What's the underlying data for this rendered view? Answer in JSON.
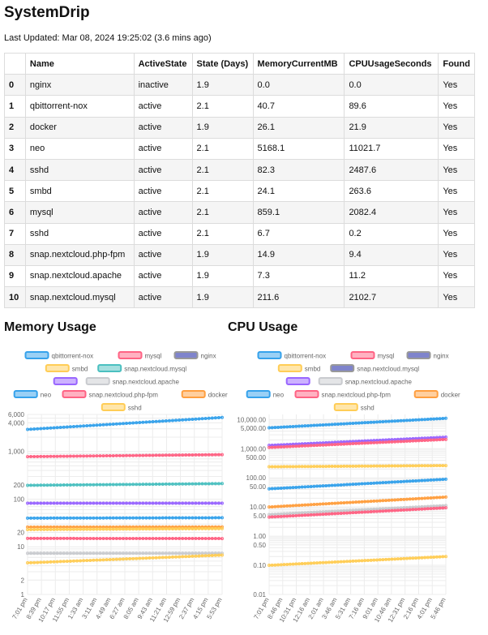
{
  "title": "SystemDrip",
  "last_updated": "Last Updated: Mar 08, 2024 19:25:02 (3.6 mins ago)",
  "table": {
    "columns": [
      "",
      "Name",
      "ActiveState",
      "State (Days)",
      "MemoryCurrentMB",
      "CPUUsageSeconds",
      "Found"
    ],
    "rows": [
      [
        "0",
        "nginx",
        "inactive",
        "1.9",
        "0.0",
        "0.0",
        "Yes"
      ],
      [
        "1",
        "qbittorrent-nox",
        "active",
        "2.1",
        "40.7",
        "89.6",
        "Yes"
      ],
      [
        "2",
        "docker",
        "active",
        "1.9",
        "26.1",
        "21.9",
        "Yes"
      ],
      [
        "3",
        "neo",
        "active",
        "2.1",
        "5168.1",
        "11021.7",
        "Yes"
      ],
      [
        "4",
        "sshd",
        "active",
        "2.1",
        "82.3",
        "2487.6",
        "Yes"
      ],
      [
        "5",
        "smbd",
        "active",
        "2.1",
        "24.1",
        "263.6",
        "Yes"
      ],
      [
        "6",
        "mysql",
        "active",
        "2.1",
        "859.1",
        "2082.4",
        "Yes"
      ],
      [
        "7",
        "sshd",
        "active",
        "2.1",
        "6.7",
        "0.2",
        "Yes"
      ],
      [
        "8",
        "snap.nextcloud.php-fpm",
        "active",
        "1.9",
        "14.9",
        "9.4",
        "Yes"
      ],
      [
        "9",
        "snap.nextcloud.apache",
        "active",
        "1.9",
        "7.3",
        "11.2",
        "Yes"
      ],
      [
        "10",
        "snap.nextcloud.mysql",
        "active",
        "1.9",
        "211.6",
        "2102.7",
        "Yes"
      ]
    ]
  },
  "memory_heading": "Memory Usage",
  "cpu_heading": "CPU Usage",
  "chart_data": [
    {
      "type": "line",
      "title": "Memory Usage",
      "scale": "log",
      "grid": true,
      "legend": "top",
      "y_ticks": [
        1,
        2,
        10,
        20,
        100,
        200,
        1000,
        4000,
        6000
      ],
      "y_tick_labels": [
        "1",
        "2",
        "10",
        "20",
        "100",
        "200",
        "1,000",
        "4,000",
        "6,000"
      ],
      "ylim": [
        1,
        6000
      ],
      "x_labels": [
        "7:01 pm",
        "8:39 pm",
        "10:17 pm",
        "11:55 pm",
        "1:33 am",
        "3:11 am",
        "4:49 am",
        "6:27 am",
        "8:05 am",
        "9:43 am",
        "11:21 am",
        "12:59 pm",
        "2:37 pm",
        "4:15 pm",
        "5:53 pm"
      ],
      "legend_rows": [
        [
          "qbittorrent-nox",
          "mysql",
          "nginx"
        ],
        [
          "smbd",
          "snap.nextcloud.mysql"
        ],
        [
          "",
          "snap.nextcloud.apache"
        ],
        [
          "neo",
          "snap.nextcloud.php-fpm",
          "docker"
        ],
        [
          "sshd"
        ]
      ],
      "series": [
        {
          "name": "neo",
          "color": "#36a2eb",
          "start": 2900,
          "end": 5168
        },
        {
          "name": "mysql",
          "color": "#ff6384",
          "start": 780,
          "end": 859
        },
        {
          "name": "snap.nextcloud.mysql",
          "color": "#4bc0c0",
          "start": 195,
          "end": 212
        },
        {
          "name": "",
          "color": "#9966ff",
          "start": 82,
          "end": 82
        },
        {
          "name": "qbittorrent-nox",
          "color": "#36a2eb",
          "start": 40,
          "end": 40.7
        },
        {
          "name": "docker",
          "color": "#ff9f40",
          "start": 26,
          "end": 26.1
        },
        {
          "name": "smbd",
          "color": "#ffcd56",
          "start": 23,
          "end": 24.1
        },
        {
          "name": "snap.nextcloud.php-fpm",
          "color": "#ff6384",
          "start": 15,
          "end": 14.9
        },
        {
          "name": "snap.nextcloud.apache",
          "color": "#c9cbcf",
          "start": 7.3,
          "end": 7.3
        },
        {
          "name": "sshd",
          "color": "#ffcd56",
          "start": 4.6,
          "end": 6.7
        }
      ]
    },
    {
      "type": "line",
      "title": "CPU Usage",
      "scale": "log",
      "grid": true,
      "legend": "top",
      "y_ticks": [
        0.01,
        0.1,
        0.5,
        1,
        5,
        10,
        50,
        100,
        500,
        1000,
        5000,
        10000
      ],
      "y_tick_labels": [
        "0.01",
        "0.10",
        "0.50",
        "1.00",
        "5.00",
        "10.00",
        "50.00",
        "100.00",
        "500.00",
        "1,000.00",
        "5,000.00",
        "10,000.00"
      ],
      "ylim": [
        0.01,
        15000
      ],
      "x_labels": [
        "7:01 pm",
        "8:46 pm",
        "10:31 pm",
        "12:16 am",
        "2:01 am",
        "3:46 am",
        "5:31 am",
        "7:16 am",
        "9:01 am",
        "10:46 am",
        "12:31 pm",
        "2:16 pm",
        "4:01 pm",
        "5:46 pm"
      ],
      "legend_rows": [
        [
          "qbittorrent-nox",
          "mysql",
          "nginx"
        ],
        [
          "smbd",
          "snap.nextcloud.mysql"
        ],
        [
          "",
          "snap.nextcloud.apache"
        ],
        [
          "neo",
          "snap.nextcloud.php-fpm",
          "docker"
        ],
        [
          "sshd"
        ]
      ],
      "series": [
        {
          "name": "neo",
          "color": "#36a2eb",
          "start": 5200,
          "end": 11022
        },
        {
          "name": "",
          "color": "#9966ff",
          "start": 1300,
          "end": 2488
        },
        {
          "name": "mysql",
          "color": "#ff6384",
          "start": 1100,
          "end": 2082
        },
        {
          "name": "smbd",
          "color": "#ffcd56",
          "start": 240,
          "end": 264
        },
        {
          "name": "qbittorrent-nox",
          "color": "#36a2eb",
          "start": 42,
          "end": 89.6
        },
        {
          "name": "docker",
          "color": "#ff9f40",
          "start": 10,
          "end": 21.9
        },
        {
          "name": "snap.nextcloud.apache",
          "color": "#c9cbcf",
          "start": 5.5,
          "end": 11.2
        },
        {
          "name": "snap.nextcloud.php-fpm",
          "color": "#ff6384",
          "start": 4.5,
          "end": 9.4
        },
        {
          "name": "sshd",
          "color": "#ffcd56",
          "start": 0.1,
          "end": 0.2
        }
      ]
    }
  ]
}
